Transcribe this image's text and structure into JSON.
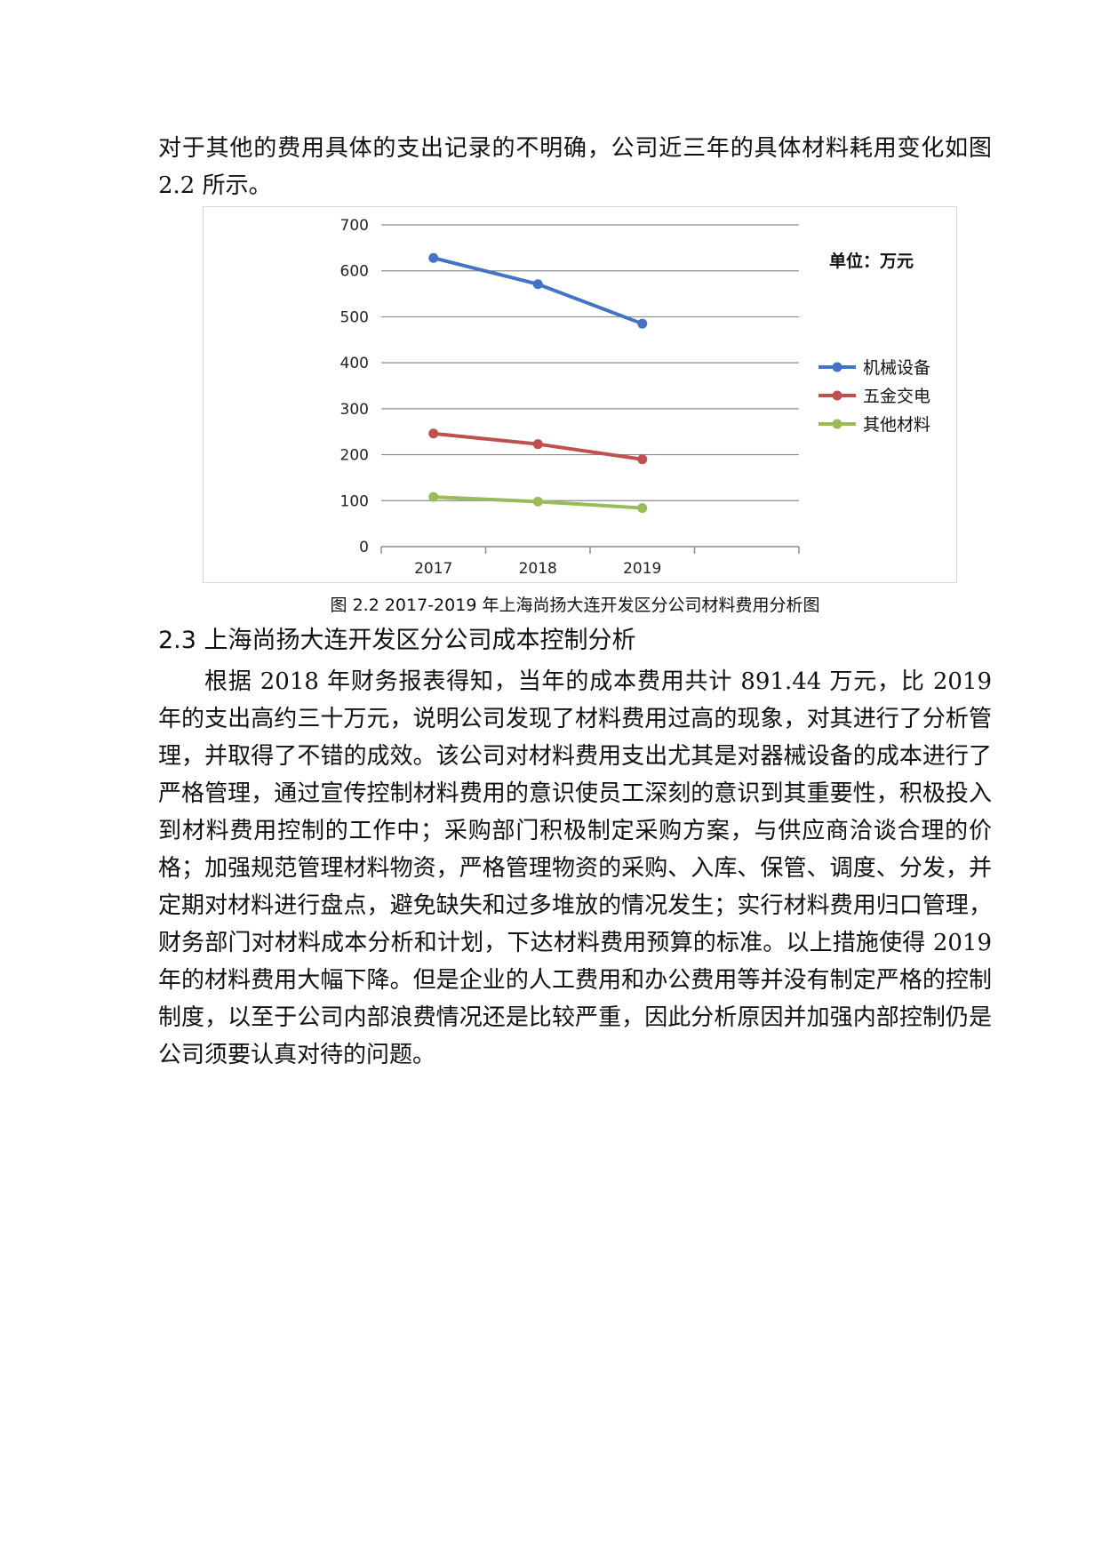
{
  "intro_text": "对于其他的费用具体的支出记录的不明确，公司近三年的具体材料耗用变化如图 2.2 所示。",
  "chart_data": {
    "type": "line",
    "x": [
      "2017",
      "2018",
      "2019"
    ],
    "ylim": [
      0,
      700
    ],
    "yticks": [
      0,
      100,
      200,
      300,
      400,
      500,
      600,
      700
    ],
    "grid": true,
    "legend_position": "right",
    "annotation": "单位：万元",
    "series": [
      {
        "name": "机械设备",
        "values": [
          628,
          571,
          485
        ],
        "color": "#4472c4"
      },
      {
        "name": "五金交电",
        "values": [
          246,
          223,
          190
        ],
        "color": "#c0504d"
      },
      {
        "name": "其他材料",
        "values": [
          108,
          98,
          84
        ],
        "color": "#9bbb59"
      }
    ]
  },
  "caption": "图 2.2 2017-2019 年上海尚扬大连开发区分公司材料费用分析图",
  "section_heading": "2.3 上海尚扬大连开发区分公司成本控制分析",
  "body_text": "根据 2018 年财务报表得知，当年的成本费用共计 891.44 万元，比 2019 年的支出高约三十万元，说明公司发现了材料费用过高的现象，对其进行了分析管理，并取得了不错的成效。该公司对材料费用支出尤其是对器械设备的成本进行了严格管理，通过宣传控制材料费用的意识使员工深刻的意识到其重要性，积极投入到材料费用控制的工作中；采购部门积极制定采购方案，与供应商洽谈合理的价格；加强规范管理材料物资，严格管理物资的采购、入库、保管、调度、分发，并定期对材料进行盘点，避免缺失和过多堆放的情况发生；实行材料费用归口管理，财务部门对材料成本分析和计划，下达材料费用预算的标准。以上措施使得 2019 年的材料费用大幅下降。但是企业的人工费用和办公费用等并没有制定严格的控制制度，以至于公司内部浪费情况还是比较严重，因此分析原因并加强内部控制仍是公司须要认真对待的问题。"
}
